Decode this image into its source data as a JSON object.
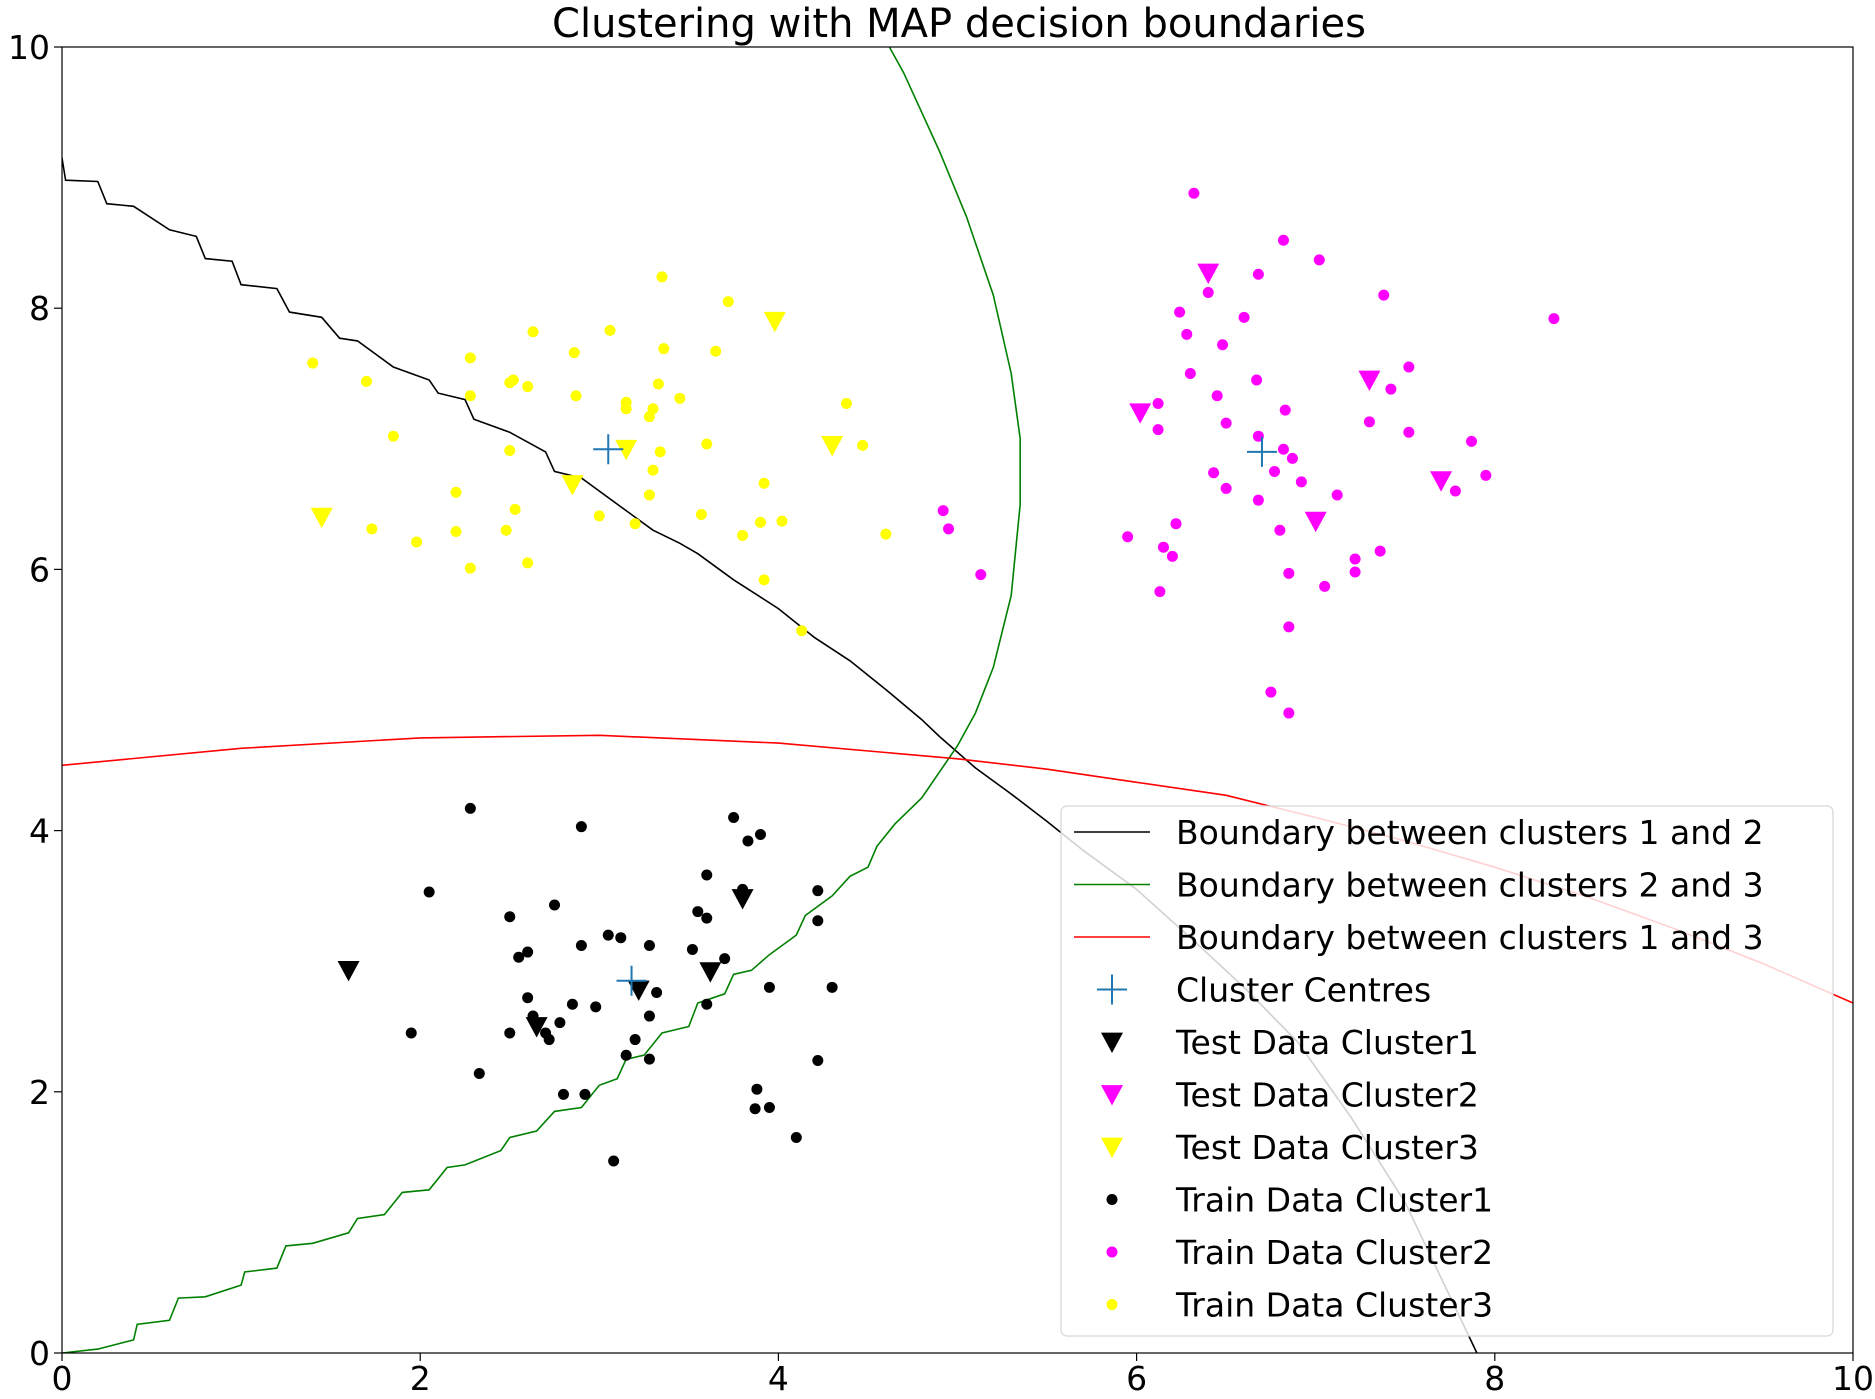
{
  "chart_data": {
    "type": "scatter",
    "title": "Clustering with MAP decision boundaries",
    "xlabel": "",
    "ylabel": "",
    "xlim": [
      0,
      10
    ],
    "ylim": [
      0,
      10
    ],
    "xticks": [
      "0",
      "2",
      "4",
      "6",
      "8",
      "10"
    ],
    "yticks": [
      "0",
      "2",
      "4",
      "6",
      "8",
      "10"
    ],
    "grid": false,
    "legend_position": "bottom-right",
    "boundaries": [
      {
        "name": "Boundary between clusters 1 and 2",
        "color": "#000000",
        "points": [
          [
            0,
            9.15
          ],
          [
            0.02,
            8.98
          ],
          [
            0.2,
            8.97
          ],
          [
            0.25,
            8.8
          ],
          [
            0.4,
            8.78
          ],
          [
            0.6,
            8.6
          ],
          [
            0.75,
            8.55
          ],
          [
            0.8,
            8.38
          ],
          [
            0.95,
            8.36
          ],
          [
            1.0,
            8.18
          ],
          [
            1.2,
            8.15
          ],
          [
            1.27,
            7.97
          ],
          [
            1.45,
            7.93
          ],
          [
            1.55,
            7.77
          ],
          [
            1.65,
            7.75
          ],
          [
            1.85,
            7.55
          ],
          [
            2.05,
            7.45
          ],
          [
            2.1,
            7.35
          ],
          [
            2.25,
            7.3
          ],
          [
            2.3,
            7.15
          ],
          [
            2.5,
            7.05
          ],
          [
            2.7,
            6.9
          ],
          [
            2.75,
            6.75
          ],
          [
            2.9,
            6.7
          ],
          [
            3.1,
            6.5
          ],
          [
            3.3,
            6.3
          ],
          [
            3.45,
            6.2
          ],
          [
            3.55,
            6.12
          ],
          [
            3.75,
            5.92
          ],
          [
            4.0,
            5.7
          ],
          [
            4.2,
            5.48
          ],
          [
            4.4,
            5.3
          ],
          [
            4.6,
            5.08
          ],
          [
            4.8,
            4.85
          ],
          [
            4.9,
            4.72
          ],
          [
            5.1,
            4.48
          ],
          [
            5.3,
            4.28
          ],
          [
            5.5,
            4.07
          ],
          [
            5.7,
            3.85
          ],
          [
            6.0,
            3.55
          ],
          [
            6.3,
            3.18
          ],
          [
            6.6,
            2.8
          ],
          [
            6.9,
            2.38
          ],
          [
            7.2,
            1.8
          ],
          [
            7.5,
            1.15
          ],
          [
            7.9,
            0
          ]
        ]
      },
      {
        "name": "Boundary between clusters 2 and 3",
        "color": "#008000",
        "points": [
          [
            0,
            0
          ],
          [
            0.2,
            0.03
          ],
          [
            0.4,
            0.1
          ],
          [
            0.42,
            0.22
          ],
          [
            0.6,
            0.25
          ],
          [
            0.65,
            0.42
          ],
          [
            0.8,
            0.43
          ],
          [
            1.0,
            0.52
          ],
          [
            1.02,
            0.62
          ],
          [
            1.2,
            0.65
          ],
          [
            1.25,
            0.82
          ],
          [
            1.4,
            0.84
          ],
          [
            1.6,
            0.92
          ],
          [
            1.65,
            1.03
          ],
          [
            1.8,
            1.06
          ],
          [
            1.9,
            1.23
          ],
          [
            2.05,
            1.25
          ],
          [
            2.15,
            1.42
          ],
          [
            2.25,
            1.44
          ],
          [
            2.45,
            1.55
          ],
          [
            2.5,
            1.65
          ],
          [
            2.65,
            1.7
          ],
          [
            2.75,
            1.85
          ],
          [
            2.9,
            1.88
          ],
          [
            3.0,
            2.05
          ],
          [
            3.1,
            2.1
          ],
          [
            3.15,
            2.25
          ],
          [
            3.25,
            2.28
          ],
          [
            3.35,
            2.45
          ],
          [
            3.5,
            2.5
          ],
          [
            3.55,
            2.68
          ],
          [
            3.7,
            2.75
          ],
          [
            3.75,
            2.9
          ],
          [
            3.85,
            2.93
          ],
          [
            3.95,
            3.05
          ],
          [
            4.1,
            3.2
          ],
          [
            4.15,
            3.35
          ],
          [
            4.3,
            3.5
          ],
          [
            4.4,
            3.65
          ],
          [
            4.5,
            3.72
          ],
          [
            4.55,
            3.88
          ],
          [
            4.65,
            4.05
          ],
          [
            4.8,
            4.25
          ],
          [
            4.9,
            4.45
          ],
          [
            5.0,
            4.65
          ],
          [
            5.1,
            4.9
          ],
          [
            5.2,
            5.25
          ],
          [
            5.3,
            5.8
          ],
          [
            5.35,
            6.5
          ],
          [
            5.35,
            7.0
          ],
          [
            5.3,
            7.5
          ],
          [
            5.2,
            8.1
          ],
          [
            5.05,
            8.7
          ],
          [
            4.9,
            9.2
          ],
          [
            4.8,
            9.5
          ],
          [
            4.7,
            9.8
          ],
          [
            4.62,
            10
          ]
        ]
      },
      {
        "name": "Boundary between clusters 1 and 3",
        "color": "#ff0000",
        "points": [
          [
            0,
            4.5
          ],
          [
            1,
            4.63
          ],
          [
            2,
            4.71
          ],
          [
            3,
            4.73
          ],
          [
            4,
            4.67
          ],
          [
            5,
            4.55
          ],
          [
            5.5,
            4.47
          ],
          [
            6,
            4.37
          ],
          [
            6.5,
            4.27
          ],
          [
            7,
            4.1
          ],
          [
            7.5,
            3.92
          ],
          [
            8,
            3.72
          ],
          [
            8.5,
            3.5
          ],
          [
            9,
            3.25
          ],
          [
            9.5,
            2.98
          ],
          [
            10,
            2.68
          ]
        ]
      }
    ],
    "series": [
      {
        "name": "Cluster Centres",
        "marker": "plus",
        "color": "#1f77b4",
        "points": [
          [
            3.05,
            6.92
          ],
          [
            6.7,
            6.9
          ],
          [
            3.18,
            2.85
          ]
        ]
      },
      {
        "name": "Test Data Cluster1",
        "marker": "triangle-down",
        "color": "#000000",
        "points": [
          [
            1.6,
            2.93
          ],
          [
            2.65,
            2.5
          ],
          [
            3.22,
            2.78
          ],
          [
            3.62,
            2.92
          ],
          [
            3.8,
            3.48
          ]
        ]
      },
      {
        "name": "Test Data Cluster2",
        "marker": "triangle-down",
        "color": "#ff00ff",
        "points": [
          [
            6.4,
            8.27
          ],
          [
            6.02,
            7.2
          ],
          [
            7.3,
            7.45
          ],
          [
            7.0,
            6.37
          ],
          [
            7.7,
            6.68
          ]
        ]
      },
      {
        "name": "Test Data Cluster3",
        "marker": "triangle-down",
        "color": "#ffff00",
        "points": [
          [
            1.45,
            6.4
          ],
          [
            2.85,
            6.65
          ],
          [
            3.15,
            6.92
          ],
          [
            3.98,
            7.9
          ],
          [
            4.3,
            6.95
          ]
        ]
      },
      {
        "name": "Train Data Cluster1",
        "marker": "dot",
        "color": "#000000",
        "points": [
          [
            2.28,
            4.17
          ],
          [
            2.9,
            4.03
          ],
          [
            3.75,
            4.1
          ],
          [
            3.9,
            3.97
          ],
          [
            3.83,
            3.92
          ],
          [
            2.05,
            3.53
          ],
          [
            4.22,
            3.54
          ],
          [
            3.6,
            3.66
          ],
          [
            3.8,
            3.55
          ],
          [
            2.75,
            3.43
          ],
          [
            3.55,
            3.38
          ],
          [
            3.6,
            3.33
          ],
          [
            2.5,
            3.34
          ],
          [
            4.22,
            3.31
          ],
          [
            3.05,
            3.2
          ],
          [
            3.12,
            3.18
          ],
          [
            2.9,
            3.12
          ],
          [
            3.28,
            3.12
          ],
          [
            2.6,
            3.07
          ],
          [
            2.55,
            3.03
          ],
          [
            3.52,
            3.09
          ],
          [
            3.7,
            3.02
          ],
          [
            3.32,
            2.76
          ],
          [
            3.95,
            2.8
          ],
          [
            4.3,
            2.8
          ],
          [
            2.6,
            2.72
          ],
          [
            2.85,
            2.67
          ],
          [
            2.98,
            2.65
          ],
          [
            3.6,
            2.67
          ],
          [
            2.63,
            2.58
          ],
          [
            3.28,
            2.58
          ],
          [
            2.78,
            2.53
          ],
          [
            2.5,
            2.45
          ],
          [
            2.7,
            2.45
          ],
          [
            1.95,
            2.45
          ],
          [
            2.72,
            2.4
          ],
          [
            3.2,
            2.4
          ],
          [
            3.15,
            2.28
          ],
          [
            3.28,
            2.25
          ],
          [
            4.22,
            2.24
          ],
          [
            2.33,
            2.14
          ],
          [
            3.88,
            2.02
          ],
          [
            2.8,
            1.98
          ],
          [
            2.92,
            1.98
          ],
          [
            3.87,
            1.87
          ],
          [
            3.95,
            1.88
          ],
          [
            4.1,
            1.65
          ],
          [
            3.08,
            1.47
          ]
        ]
      },
      {
        "name": "Train Data Cluster2",
        "marker": "dot",
        "color": "#ff00ff",
        "points": [
          [
            6.32,
            8.88
          ],
          [
            6.82,
            8.52
          ],
          [
            7.02,
            8.37
          ],
          [
            6.68,
            8.26
          ],
          [
            6.4,
            8.12
          ],
          [
            7.38,
            8.1
          ],
          [
            6.24,
            7.97
          ],
          [
            6.6,
            7.93
          ],
          [
            8.33,
            7.92
          ],
          [
            6.28,
            7.8
          ],
          [
            6.48,
            7.72
          ],
          [
            7.52,
            7.55
          ],
          [
            6.3,
            7.5
          ],
          [
            6.67,
            7.45
          ],
          [
            7.42,
            7.38
          ],
          [
            6.45,
            7.33
          ],
          [
            6.12,
            7.27
          ],
          [
            6.83,
            7.22
          ],
          [
            7.3,
            7.13
          ],
          [
            6.5,
            7.12
          ],
          [
            6.12,
            7.07
          ],
          [
            7.52,
            7.05
          ],
          [
            6.68,
            7.02
          ],
          [
            7.87,
            6.98
          ],
          [
            6.82,
            6.92
          ],
          [
            6.87,
            6.85
          ],
          [
            6.77,
            6.75
          ],
          [
            6.43,
            6.74
          ],
          [
            7.95,
            6.72
          ],
          [
            6.92,
            6.67
          ],
          [
            6.5,
            6.62
          ],
          [
            7.78,
            6.6
          ],
          [
            7.12,
            6.57
          ],
          [
            6.68,
            6.53
          ],
          [
            4.92,
            6.45
          ],
          [
            4.95,
            6.31
          ],
          [
            6.22,
            6.35
          ],
          [
            6.8,
            6.3
          ],
          [
            5.95,
            6.25
          ],
          [
            6.15,
            6.17
          ],
          [
            7.36,
            6.14
          ],
          [
            6.2,
            6.1
          ],
          [
            7.22,
            6.08
          ],
          [
            5.13,
            5.96
          ],
          [
            6.85,
            5.97
          ],
          [
            7.22,
            5.98
          ],
          [
            7.05,
            5.87
          ],
          [
            6.13,
            5.83
          ],
          [
            6.85,
            5.56
          ],
          [
            6.75,
            5.06
          ],
          [
            6.85,
            4.9
          ]
        ]
      },
      {
        "name": "Train Data Cluster3",
        "marker": "dot",
        "color": "#ffff00",
        "points": [
          [
            3.35,
            8.24
          ],
          [
            3.72,
            8.05
          ],
          [
            3.06,
            7.83
          ],
          [
            2.63,
            7.82
          ],
          [
            3.36,
            7.69
          ],
          [
            3.65,
            7.67
          ],
          [
            2.86,
            7.66
          ],
          [
            2.28,
            7.62
          ],
          [
            1.4,
            7.58
          ],
          [
            2.52,
            7.45
          ],
          [
            2.5,
            7.43
          ],
          [
            1.7,
            7.44
          ],
          [
            2.6,
            7.4
          ],
          [
            3.33,
            7.42
          ],
          [
            2.87,
            7.33
          ],
          [
            2.28,
            7.33
          ],
          [
            3.45,
            7.31
          ],
          [
            3.15,
            7.28
          ],
          [
            3.15,
            7.23
          ],
          [
            3.3,
            7.23
          ],
          [
            3.28,
            7.17
          ],
          [
            4.38,
            7.27
          ],
          [
            1.85,
            7.02
          ],
          [
            3.6,
            6.96
          ],
          [
            4.47,
            6.95
          ],
          [
            2.5,
            6.91
          ],
          [
            3.34,
            6.9
          ],
          [
            3.3,
            6.76
          ],
          [
            3.92,
            6.66
          ],
          [
            2.2,
            6.59
          ],
          [
            3.28,
            6.57
          ],
          [
            2.53,
            6.46
          ],
          [
            3.0,
            6.41
          ],
          [
            3.57,
            6.42
          ],
          [
            3.9,
            6.36
          ],
          [
            4.02,
            6.37
          ],
          [
            3.2,
            6.35
          ],
          [
            1.73,
            6.31
          ],
          [
            2.48,
            6.3
          ],
          [
            2.2,
            6.29
          ],
          [
            3.8,
            6.26
          ],
          [
            4.6,
            6.27
          ],
          [
            1.98,
            6.21
          ],
          [
            2.6,
            6.05
          ],
          [
            2.28,
            6.01
          ],
          [
            3.92,
            5.92
          ],
          [
            4.13,
            5.53
          ]
        ]
      }
    ]
  }
}
